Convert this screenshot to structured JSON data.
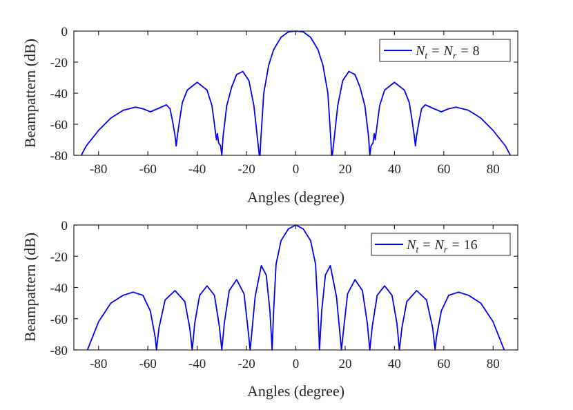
{
  "chart_data": [
    {
      "type": "line",
      "ylabel": "Beampattern (dB)",
      "xlabel": "Angles (degree)",
      "xlim": [
        -90,
        90
      ],
      "ylim": [
        -80,
        0
      ],
      "xticks": [
        -80,
        -60,
        -40,
        -20,
        0,
        20,
        40,
        60,
        80
      ],
      "xtick_labels": [
        "-80",
        "-60",
        "-40",
        "-20",
        "0",
        "20",
        "40",
        "60",
        "80"
      ],
      "yticks": [
        0,
        -20,
        -40,
        -60,
        -80
      ],
      "ytick_labels": [
        "0",
        "-20",
        "-40",
        "-60",
        "-80"
      ],
      "grid": false,
      "legend_position": "top-right",
      "legend": {
        "var_a": "N",
        "sub_a": "t",
        "var_b": "N",
        "sub_b": "r",
        "eq": "=",
        "value": "8"
      },
      "series": [
        {
          "name_text": "N_t = N_r = 8",
          "color": "#0000ee",
          "antennas": 8,
          "x": [
            -87,
            -85,
            -80,
            -75,
            -70,
            -65,
            -62,
            -59,
            -56,
            -52.5,
            -51,
            -50,
            -49,
            -48.5,
            -48,
            -47,
            -46,
            -44,
            -40,
            -36,
            -34,
            -33,
            -32.2,
            -31.8,
            -31.3,
            -30.5,
            -30,
            -29.5,
            -28,
            -26,
            -24,
            -21.5,
            -19,
            -17,
            -15.5,
            -14.8,
            -14.5,
            -14.2,
            -13,
            -11,
            -9,
            -6,
            -3,
            0,
            3,
            6,
            9,
            11,
            13,
            14.2,
            14.5,
            14.8,
            15.5,
            17,
            19,
            21.5,
            24,
            26,
            28,
            29.5,
            30,
            30.5,
            31.3,
            31.8,
            32.2,
            33,
            34,
            36,
            40,
            44,
            46,
            47,
            48,
            48.5,
            49,
            50,
            51,
            52.5,
            56,
            59,
            62,
            65,
            70,
            75,
            80,
            85,
            87
          ],
          "values": [
            -80,
            -74,
            -64,
            -56,
            -51,
            -49,
            -50,
            -52,
            -50,
            -47.5,
            -50,
            -58,
            -67,
            -74,
            -67,
            -56,
            -46,
            -38,
            -33,
            -38,
            -48,
            -60,
            -70,
            -66,
            -72,
            -74,
            -80,
            -68,
            -48,
            -36,
            -28,
            -26,
            -32,
            -48,
            -70,
            -80,
            -80,
            -70,
            -40,
            -22,
            -12,
            -4,
            -0.5,
            0,
            -0.5,
            -4,
            -12,
            -22,
            -40,
            -70,
            -80,
            -80,
            -70,
            -48,
            -32,
            -26,
            -28,
            -36,
            -48,
            -68,
            -80,
            -74,
            -72,
            -66,
            -70,
            -60,
            -48,
            -38,
            -33,
            -38,
            -46,
            -56,
            -67,
            -74,
            -67,
            -58,
            -50,
            -47.5,
            -50,
            -52,
            -50,
            -49,
            -51,
            -56,
            -64,
            -74,
            -80
          ]
        }
      ]
    },
    {
      "type": "line",
      "ylabel": "Beampattern (dB)",
      "xlabel": "Angles (degree)",
      "xlim": [
        -90,
        90
      ],
      "ylim": [
        -80,
        0
      ],
      "xticks": [
        -80,
        -60,
        -40,
        -20,
        0,
        20,
        40,
        60,
        80
      ],
      "xtick_labels": [
        "-80",
        "-60",
        "-40",
        "-20",
        "0",
        "20",
        "40",
        "60",
        "80"
      ],
      "yticks": [
        0,
        -20,
        -40,
        -60,
        -80
      ],
      "ytick_labels": [
        "0",
        "-20",
        "-40",
        "-60",
        "-80"
      ],
      "grid": false,
      "legend_position": "top-right",
      "legend": {
        "var_a": "N",
        "sub_a": "t",
        "var_b": "N",
        "sub_b": "r",
        "eq": "=",
        "value": "16"
      },
      "series": [
        {
          "name_text": "N_t = N_r = 16",
          "color": "#0000ee",
          "antennas": 16,
          "x": [
            -84.5,
            -80,
            -75,
            -70,
            -66,
            -62,
            -59,
            -57,
            -56.5,
            -55.5,
            -53,
            -49,
            -45,
            -43,
            -42,
            -41,
            -39,
            -36,
            -33,
            -31,
            -30,
            -29,
            -27,
            -24,
            -21,
            -19.5,
            -18.5,
            -16.5,
            -14,
            -12,
            -10.5,
            -9.6,
            -9,
            -8,
            -6,
            -3,
            0,
            3,
            6,
            8,
            9,
            9.6,
            10.5,
            12,
            14,
            16.5,
            18.5,
            19.5,
            21,
            24,
            27,
            29,
            30,
            31,
            33,
            36,
            39,
            41,
            42,
            43,
            45,
            49,
            53,
            55.5,
            56.5,
            57,
            59,
            62,
            66,
            70,
            75,
            80,
            84.5
          ],
          "values": [
            -80,
            -62,
            -50,
            -45,
            -43,
            -45,
            -55,
            -72,
            -80,
            -66,
            -48,
            -42,
            -49,
            -66,
            -80,
            -63,
            -45,
            -39,
            -45,
            -65,
            -80,
            -63,
            -42,
            -35,
            -44,
            -65,
            -80,
            -46,
            -26,
            -32,
            -55,
            -80,
            -55,
            -25,
            -10,
            -2.5,
            0,
            -2.5,
            -10,
            -25,
            -55,
            -80,
            -55,
            -32,
            -26,
            -46,
            -80,
            -65,
            -44,
            -35,
            -42,
            -63,
            -80,
            -65,
            -45,
            -39,
            -45,
            -63,
            -80,
            -66,
            -49,
            -42,
            -48,
            -66,
            -80,
            -72,
            -55,
            -45,
            -43,
            -45,
            -50,
            -62,
            -80
          ]
        }
      ]
    }
  ]
}
